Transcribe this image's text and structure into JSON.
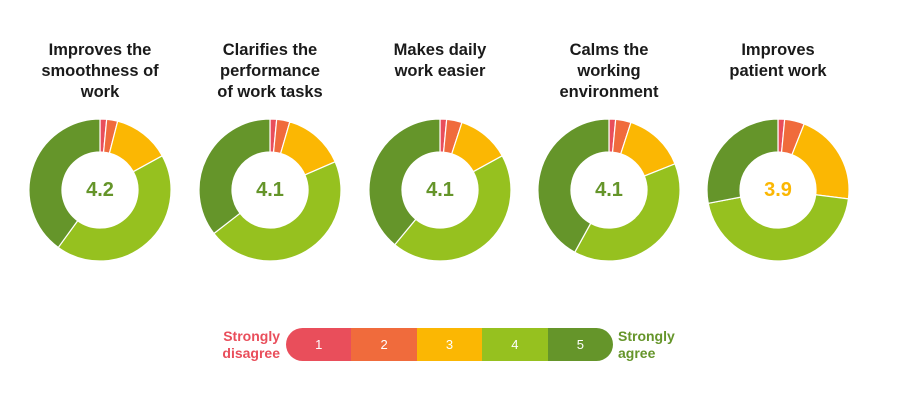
{
  "colors": {
    "s1": "#e94e5b",
    "s2": "#f06b3c",
    "s3": "#fbb703",
    "s4": "#96c11f",
    "s5": "#65952a",
    "value_green": "#65952a",
    "value_orange": "#fbb703"
  },
  "legend": {
    "left_label": "Strongly\ndisagree",
    "right_label": "Strongly\nagree",
    "levels": [
      "1",
      "2",
      "3",
      "4",
      "5"
    ]
  },
  "chart_data": [
    {
      "type": "pie",
      "title": "Improves the\nsmoothness of\nwork",
      "center_value": "4.2",
      "center_color": "value_green",
      "categories": [
        "1",
        "2",
        "3",
        "4",
        "5"
      ],
      "values": [
        1.5,
        2.5,
        13,
        43,
        40
      ]
    },
    {
      "type": "pie",
      "title": "Clarifies the\nperformance\nof work tasks",
      "center_value": "4.1",
      "center_color": "value_green",
      "categories": [
        "1",
        "2",
        "3",
        "4",
        "5"
      ],
      "values": [
        1.5,
        3,
        14,
        46,
        35.5
      ]
    },
    {
      "type": "pie",
      "title": "Makes daily\nwork easier",
      "center_value": "4.1",
      "center_color": "value_green",
      "categories": [
        "1",
        "2",
        "3",
        "4",
        "5"
      ],
      "values": [
        1.5,
        3.5,
        12,
        44,
        39
      ]
    },
    {
      "type": "pie",
      "title": "Calms the\nworking\nenvironment",
      "center_value": "4.1",
      "center_color": "value_green",
      "categories": [
        "1",
        "2",
        "3",
        "4",
        "5"
      ],
      "values": [
        1.5,
        3.5,
        14,
        39,
        42
      ]
    },
    {
      "type": "pie",
      "title": "Improves\npatient work",
      "center_value": "3.9",
      "center_color": "value_orange",
      "categories": [
        "1",
        "2",
        "3",
        "4",
        "5"
      ],
      "values": [
        1.5,
        4.5,
        21,
        45,
        28
      ]
    }
  ]
}
